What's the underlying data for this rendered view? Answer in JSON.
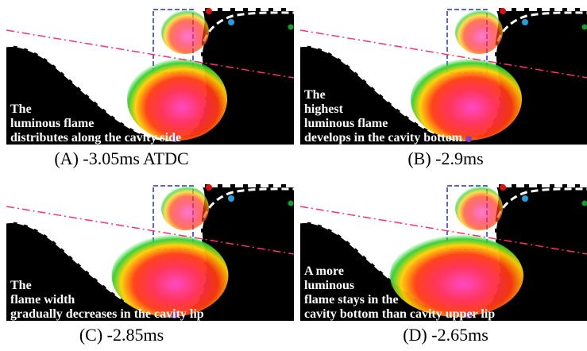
{
  "panels": [
    {
      "annotation": [
        "The",
        "luminous flame",
        "distributes along the cavity side"
      ],
      "caption": "(A) -3.05ms ATDC"
    },
    {
      "annotation": [
        "The",
        "highest",
        "luminous flame",
        "develops in the cavity bottom"
      ],
      "caption": "(B) -2.9ms"
    },
    {
      "annotation": [
        "The",
        "flame width",
        "gradually decreases in the cavity lip"
      ],
      "caption": "(C) -2.85ms"
    },
    {
      "annotation": [
        "A more",
        "luminous",
        "flame stays in the",
        "cavity bottom than cavity upper lip"
      ],
      "caption": "(D) -2.65ms"
    }
  ]
}
